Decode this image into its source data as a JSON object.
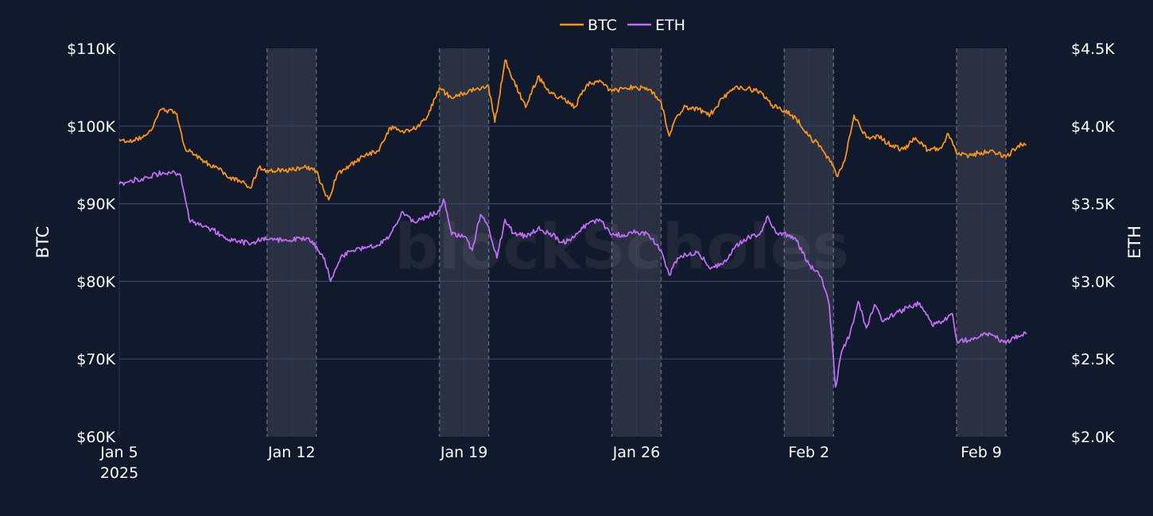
{
  "chart_data": {
    "type": "line",
    "watermark": "blockScholes",
    "legend": {
      "position": "top-center"
    },
    "x_axis": {
      "start": "2025-01-05",
      "end": "2025-02-10",
      "ticks": [
        {
          "date": "2025-01-05",
          "label": "Jan 5",
          "sublabel": "2025"
        },
        {
          "date": "2025-01-12",
          "label": "Jan 12"
        },
        {
          "date": "2025-01-19",
          "label": "Jan 19"
        },
        {
          "date": "2025-01-26",
          "label": "Jan 26"
        },
        {
          "date": "2025-02-02",
          "label": "Feb 2"
        },
        {
          "date": "2025-02-09",
          "label": "Feb 9"
        }
      ]
    },
    "y_left": {
      "label": "BTC",
      "range": [
        60000,
        110000
      ],
      "ticks": [
        {
          "value": 60000,
          "label": "$60K"
        },
        {
          "value": 70000,
          "label": "$70K"
        },
        {
          "value": 80000,
          "label": "$80K"
        },
        {
          "value": 90000,
          "label": "$90K"
        },
        {
          "value": 100000,
          "label": "$100K"
        },
        {
          "value": 110000,
          "label": "$110K"
        }
      ]
    },
    "y_right": {
      "label": "ETH",
      "range": [
        2000,
        4500
      ],
      "ticks": [
        {
          "value": 2000,
          "label": "$2.0K"
        },
        {
          "value": 2500,
          "label": "$2.5K"
        },
        {
          "value": 3000,
          "label": "$3.0K"
        },
        {
          "value": 3500,
          "label": "$3.5K"
        },
        {
          "value": 4000,
          "label": "$4.0K"
        },
        {
          "value": 4500,
          "label": "$4.5K"
        }
      ]
    },
    "grid": true,
    "weekend_shading": [
      {
        "start": "2025-01-11",
        "end": "2025-01-13"
      },
      {
        "start": "2025-01-18",
        "end": "2025-01-20"
      },
      {
        "start": "2025-01-25",
        "end": "2025-01-27"
      },
      {
        "start": "2025-02-01",
        "end": "2025-02-03"
      },
      {
        "start": "2025-02-08",
        "end": "2025-02-10"
      }
    ],
    "colors": {
      "background": "#111a2c",
      "grid": "#34466a",
      "shading": "#2a3142",
      "BTC": "#f7931a",
      "ETH": "#bf6cf3"
    },
    "series": [
      {
        "name": "BTC",
        "axis": "left",
        "points": [
          [
            "2025-01-05 00:00",
            98300
          ],
          [
            "2025-01-05 12:00",
            97900
          ],
          [
            "2025-01-06 00:00",
            98800
          ],
          [
            "2025-01-06 08:00",
            99600
          ],
          [
            "2025-01-06 16:00",
            102100
          ],
          [
            "2025-01-07 00:00",
            102000
          ],
          [
            "2025-01-07 08:00",
            101600
          ],
          [
            "2025-01-07 16:00",
            97200
          ],
          [
            "2025-01-08 00:00",
            96300
          ],
          [
            "2025-01-08 12:00",
            95300
          ],
          [
            "2025-01-09 00:00",
            94600
          ],
          [
            "2025-01-09 12:00",
            93400
          ],
          [
            "2025-01-10 00:00",
            92900
          ],
          [
            "2025-01-10 08:00",
            92000
          ],
          [
            "2025-01-10 16:00",
            94600
          ],
          [
            "2025-01-11 00:00",
            94300
          ],
          [
            "2025-01-11 12:00",
            94400
          ],
          [
            "2025-01-12 00:00",
            94300
          ],
          [
            "2025-01-12 12:00",
            94700
          ],
          [
            "2025-01-13 00:00",
            94200
          ],
          [
            "2025-01-13 08:00",
            91500
          ],
          [
            "2025-01-13 12:00",
            90500
          ],
          [
            "2025-01-13 20:00",
            93700
          ],
          [
            "2025-01-14 08:00",
            94900
          ],
          [
            "2025-01-15 00:00",
            96300
          ],
          [
            "2025-01-15 12:00",
            96800
          ],
          [
            "2025-01-16 00:00",
            99800
          ],
          [
            "2025-01-16 12:00",
            99400
          ],
          [
            "2025-01-17 00:00",
            99600
          ],
          [
            "2025-01-17 12:00",
            101200
          ],
          [
            "2025-01-18 00:00",
            104900
          ],
          [
            "2025-01-18 12:00",
            103600
          ],
          [
            "2025-01-19 00:00",
            104300
          ],
          [
            "2025-01-19 12:00",
            104800
          ],
          [
            "2025-01-20 00:00",
            105000
          ],
          [
            "2025-01-20 06:00",
            100500
          ],
          [
            "2025-01-20 10:00",
            103500
          ],
          [
            "2025-01-20 16:00",
            108500
          ],
          [
            "2025-01-21 00:00",
            106000
          ],
          [
            "2025-01-21 12:00",
            102400
          ],
          [
            "2025-01-22 00:00",
            106400
          ],
          [
            "2025-01-22 12:00",
            104200
          ],
          [
            "2025-01-23 00:00",
            103500
          ],
          [
            "2025-01-23 12:00",
            102500
          ],
          [
            "2025-01-24 00:00",
            105400
          ],
          [
            "2025-01-24 12:00",
            105900
          ],
          [
            "2025-01-25 00:00",
            104500
          ],
          [
            "2025-01-25 12:00",
            104900
          ],
          [
            "2025-01-26 00:00",
            105000
          ],
          [
            "2025-01-26 12:00",
            104700
          ],
          [
            "2025-01-27 00:00",
            103100
          ],
          [
            "2025-01-27 08:00",
            98700
          ],
          [
            "2025-01-27 16:00",
            101400
          ],
          [
            "2025-01-28 00:00",
            102500
          ],
          [
            "2025-01-28 12:00",
            102100
          ],
          [
            "2025-01-29 00:00",
            101500
          ],
          [
            "2025-01-29 12:00",
            103600
          ],
          [
            "2025-01-30 00:00",
            105000
          ],
          [
            "2025-01-30 12:00",
            104800
          ],
          [
            "2025-01-31 00:00",
            104500
          ],
          [
            "2025-01-31 12:00",
            102700
          ],
          [
            "2025-02-01 00:00",
            102000
          ],
          [
            "2025-02-01 12:00",
            100900
          ],
          [
            "2025-02-02 00:00",
            98700
          ],
          [
            "2025-02-02 12:00",
            97300
          ],
          [
            "2025-02-03 00:00",
            94800
          ],
          [
            "2025-02-03 04:00",
            93500
          ],
          [
            "2025-02-03 12:00",
            96200
          ],
          [
            "2025-02-03 20:00",
            101400
          ],
          [
            "2025-02-04 08:00",
            98500
          ],
          [
            "2025-02-04 20:00",
            98700
          ],
          [
            "2025-02-05 08:00",
            97500
          ],
          [
            "2025-02-05 20:00",
            97000
          ],
          [
            "2025-02-06 08:00",
            98500
          ],
          [
            "2025-02-06 20:00",
            96900
          ],
          [
            "2025-02-07 08:00",
            97200
          ],
          [
            "2025-02-07 16:00",
            99000
          ],
          [
            "2025-02-08 00:00",
            96400
          ],
          [
            "2025-02-08 12:00",
            96200
          ],
          [
            "2025-02-09 00:00",
            96600
          ],
          [
            "2025-02-09 12:00",
            96700
          ],
          [
            "2025-02-10 00:00",
            96000
          ],
          [
            "2025-02-10 12:00",
            97500
          ],
          [
            "2025-02-10 20:00",
            97600
          ]
        ]
      },
      {
        "name": "ETH",
        "axis": "right",
        "points": [
          [
            "2025-01-05 00:00",
            3625
          ],
          [
            "2025-01-05 12:00",
            3650
          ],
          [
            "2025-01-06 00:00",
            3665
          ],
          [
            "2025-01-06 12:00",
            3690
          ],
          [
            "2025-01-07 00:00",
            3705
          ],
          [
            "2025-01-07 12:00",
            3680
          ],
          [
            "2025-01-07 20:00",
            3400
          ],
          [
            "2025-01-08 08:00",
            3360
          ],
          [
            "2025-01-08 20:00",
            3330
          ],
          [
            "2025-01-09 08:00",
            3270
          ],
          [
            "2025-01-09 20:00",
            3260
          ],
          [
            "2025-01-10 08:00",
            3240
          ],
          [
            "2025-01-10 20:00",
            3280
          ],
          [
            "2025-01-11 08:00",
            3270
          ],
          [
            "2025-01-11 20:00",
            3260
          ],
          [
            "2025-01-12 08:00",
            3275
          ],
          [
            "2025-01-12 20:00",
            3260
          ],
          [
            "2025-01-13 08:00",
            3150
          ],
          [
            "2025-01-13 14:00",
            3000
          ],
          [
            "2025-01-14 00:00",
            3160
          ],
          [
            "2025-01-14 12:00",
            3200
          ],
          [
            "2025-01-15 00:00",
            3215
          ],
          [
            "2025-01-15 12:00",
            3230
          ],
          [
            "2025-01-16 00:00",
            3300
          ],
          [
            "2025-01-16 12:00",
            3450
          ],
          [
            "2025-01-17 00:00",
            3380
          ],
          [
            "2025-01-17 12:00",
            3420
          ],
          [
            "2025-01-18 00:00",
            3450
          ],
          [
            "2025-01-18 04:00",
            3530
          ],
          [
            "2025-01-18 12:00",
            3300
          ],
          [
            "2025-01-19 00:00",
            3290
          ],
          [
            "2025-01-19 08:00",
            3200
          ],
          [
            "2025-01-19 16:00",
            3430
          ],
          [
            "2025-01-20 00:00",
            3350
          ],
          [
            "2025-01-20 08:00",
            3150
          ],
          [
            "2025-01-20 16:00",
            3400
          ],
          [
            "2025-01-21 00:00",
            3310
          ],
          [
            "2025-01-21 12:00",
            3290
          ],
          [
            "2025-01-22 00:00",
            3340
          ],
          [
            "2025-01-22 12:00",
            3310
          ],
          [
            "2025-01-23 00:00",
            3250
          ],
          [
            "2025-01-23 12:00",
            3290
          ],
          [
            "2025-01-24 00:00",
            3370
          ],
          [
            "2025-01-24 12:00",
            3400
          ],
          [
            "2025-01-25 00:00",
            3300
          ],
          [
            "2025-01-25 12:00",
            3300
          ],
          [
            "2025-01-26 00:00",
            3320
          ],
          [
            "2025-01-26 12:00",
            3300
          ],
          [
            "2025-01-27 00:00",
            3200
          ],
          [
            "2025-01-27 08:00",
            3040
          ],
          [
            "2025-01-27 16:00",
            3150
          ],
          [
            "2025-01-28 00:00",
            3170
          ],
          [
            "2025-01-28 12:00",
            3190
          ],
          [
            "2025-01-29 00:00",
            3080
          ],
          [
            "2025-01-29 12:00",
            3110
          ],
          [
            "2025-01-30 00:00",
            3220
          ],
          [
            "2025-01-30 12:00",
            3280
          ],
          [
            "2025-01-31 00:00",
            3300
          ],
          [
            "2025-01-31 08:00",
            3420
          ],
          [
            "2025-01-31 16:00",
            3310
          ],
          [
            "2025-02-01 00:00",
            3310
          ],
          [
            "2025-02-01 12:00",
            3260
          ],
          [
            "2025-02-02 00:00",
            3110
          ],
          [
            "2025-02-02 12:00",
            3030
          ],
          [
            "2025-02-02 20:00",
            2840
          ],
          [
            "2025-02-03 00:00",
            2500
          ],
          [
            "2025-02-03 02:00",
            2320
          ],
          [
            "2025-02-03 08:00",
            2550
          ],
          [
            "2025-02-03 16:00",
            2660
          ],
          [
            "2025-02-04 00:00",
            2870
          ],
          [
            "2025-02-04 08:00",
            2700
          ],
          [
            "2025-02-04 16:00",
            2850
          ],
          [
            "2025-02-05 00:00",
            2740
          ],
          [
            "2025-02-05 12:00",
            2790
          ],
          [
            "2025-02-06 00:00",
            2830
          ],
          [
            "2025-02-06 12:00",
            2860
          ],
          [
            "2025-02-07 00:00",
            2720
          ],
          [
            "2025-02-07 12:00",
            2750
          ],
          [
            "2025-02-07 20:00",
            2790
          ],
          [
            "2025-02-08 00:00",
            2620
          ],
          [
            "2025-02-08 12:00",
            2620
          ],
          [
            "2025-02-09 00:00",
            2660
          ],
          [
            "2025-02-09 12:00",
            2650
          ],
          [
            "2025-02-10 00:00",
            2600
          ],
          [
            "2025-02-10 12:00",
            2650
          ],
          [
            "2025-02-10 20:00",
            2660
          ]
        ]
      }
    ]
  }
}
